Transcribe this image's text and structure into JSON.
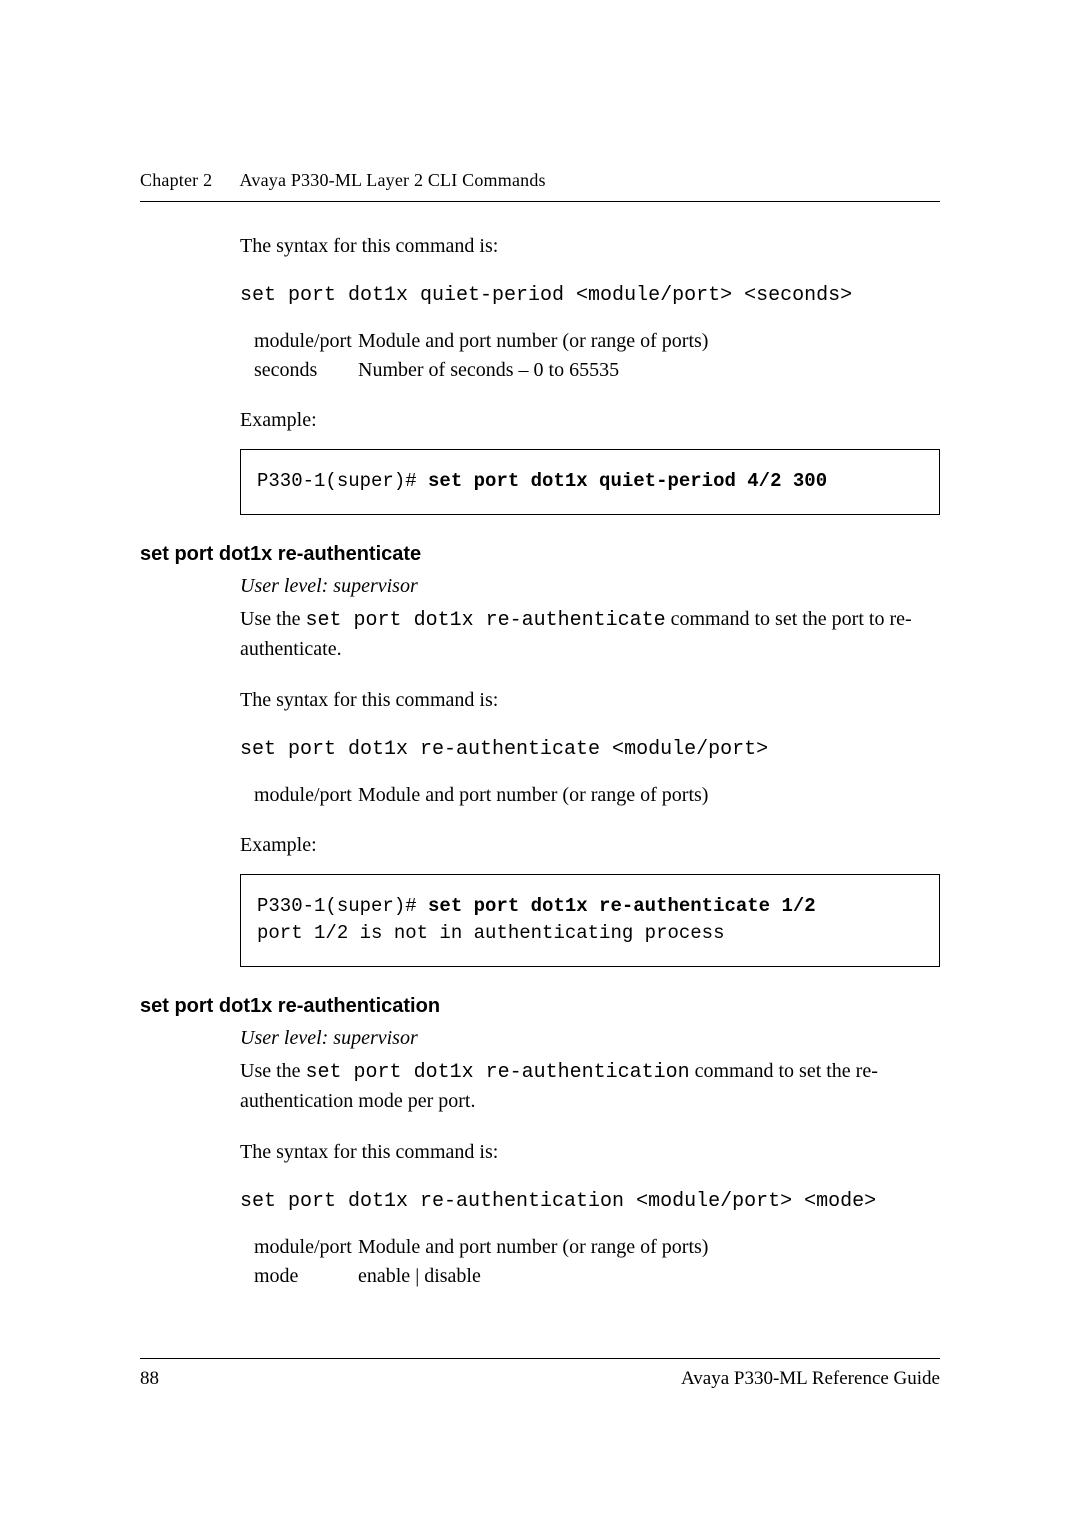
{
  "header": {
    "chapter": "Chapter 2",
    "title": "Avaya P330-ML Layer 2 CLI Commands"
  },
  "blocks": {
    "quiet_period": {
      "syntax_intro": "The syntax for this command is:",
      "syntax_cmd": "set port dot1x quiet-period  <module/port> <seconds>",
      "params": [
        {
          "name": "module/port",
          "desc": "Module and port number (or range of ports)"
        },
        {
          "name": "seconds",
          "desc": "Number of seconds – 0 to 65535"
        }
      ],
      "example_label": "Example:",
      "example_prefix": "P330-1(super)# ",
      "example_cmd": "set port dot1x quiet-period 4/2 300"
    },
    "reauthenticate": {
      "heading": "set port dot1x re-authenticate",
      "userlevel": "User level: supervisor",
      "desc_pre": "Use the ",
      "desc_code": "set port dot1x re-authenticate",
      "desc_post": " command to set the port to re-authenticate.",
      "syntax_intro": "The syntax for this command is:",
      "syntax_cmd": "set port dot1x re-authenticate <module/port>",
      "params": [
        {
          "name": "module/port",
          "desc": "Module and port number (or range of ports)"
        }
      ],
      "example_label": "Example:",
      "example_prefix": "P330-1(super)# ",
      "example_cmd": "set port dot1x re-authenticate 1/2",
      "example_out": "port 1/2 is not in authenticating process"
    },
    "reauthentication": {
      "heading": "set port dot1x re-authentication",
      "userlevel": "User level: supervisor",
      "desc_pre": "Use the ",
      "desc_code": "set port dot1x re-authentication",
      "desc_post": " command to set the re-authentication mode per port.",
      "syntax_intro": "The syntax for this command is:",
      "syntax_cmd": "set port dot1x re-authentication <module/port> <mode>",
      "params": [
        {
          "name": "module/port",
          "desc": "Module and port number (or range of ports)"
        },
        {
          "name": "mode",
          "desc": "enable | disable"
        }
      ]
    }
  },
  "footer": {
    "page": "88",
    "book": "Avaya P330-ML Reference Guide"
  }
}
